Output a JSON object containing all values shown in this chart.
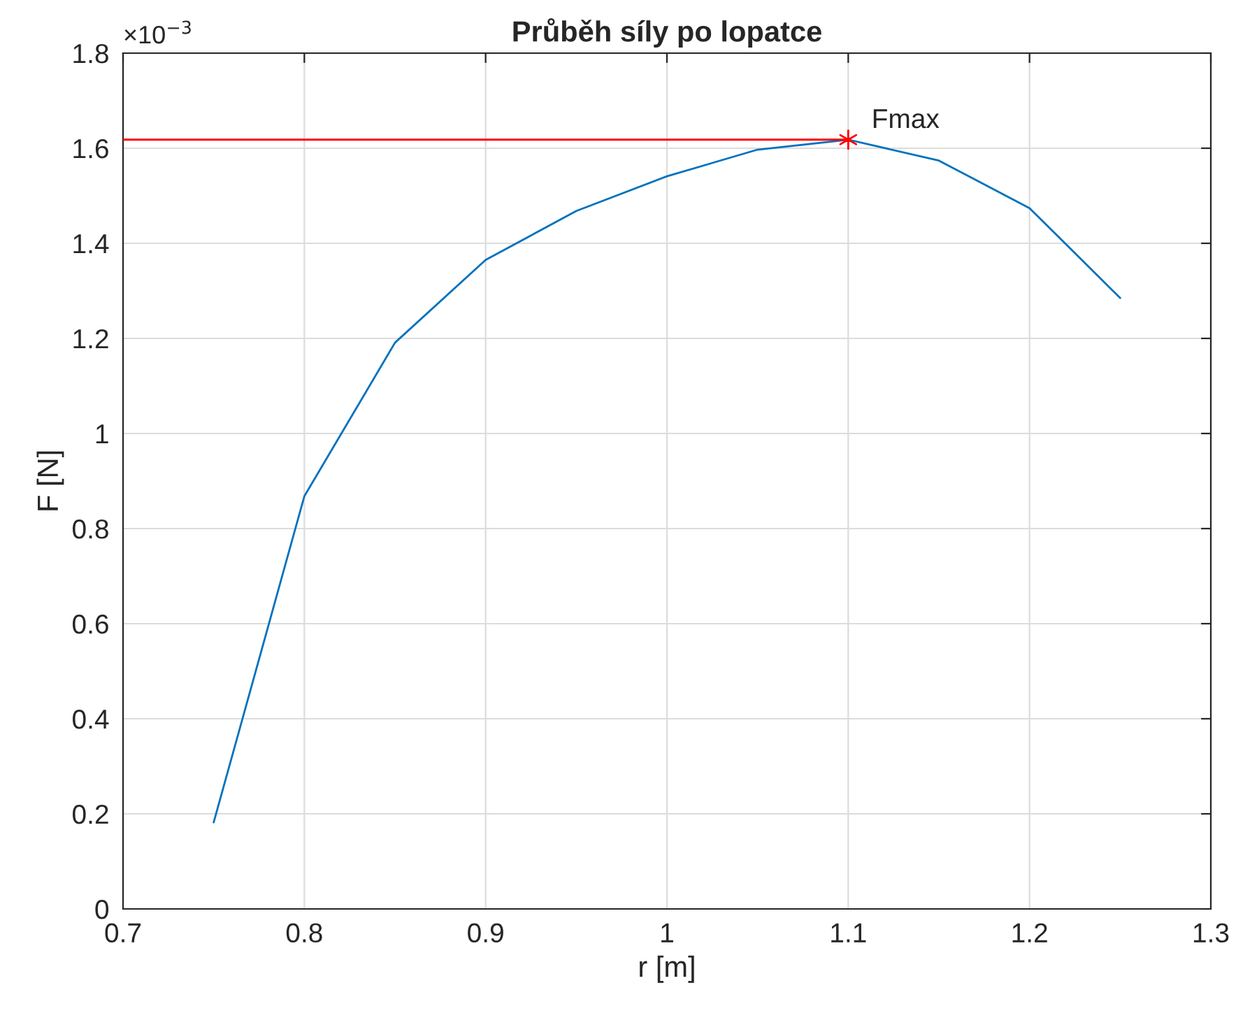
{
  "chart_data": {
    "type": "line",
    "title": "Průběh síly po lopatce",
    "xlabel": "r [m]",
    "ylabel": "F [N]",
    "x": [
      0.75,
      0.8,
      0.85,
      0.9,
      0.95,
      1.0,
      1.05,
      1.1,
      1.15,
      1.2,
      1.25
    ],
    "series": [
      {
        "color": "#0072bd",
        "values": [
          0.182,
          0.868,
          1.191,
          1.365,
          1.468,
          1.541,
          1.597,
          1.618,
          1.574,
          1.474,
          1.285
        ]
      },
      {
        "type": "scatter",
        "color": "#ff0000",
        "marker": "cross",
        "x": [
          1.1
        ],
        "values": [
          1.618
        ]
      }
    ],
    "annotations": [
      {
        "text": "Fmax",
        "x": 1.1,
        "y": 1.618
      },
      "×10$^{−3}$"
    ],
    "xlim": [
      0.7,
      1.3
    ],
    "xticks": [
      0.7,
      0.8,
      0.9,
      1,
      1.1,
      1.2,
      1.3
    ],
    "ylim": [
      0,
      1.8
    ],
    "yticks": [
      0,
      0.2,
      0.4,
      0.6,
      0.8,
      1,
      1.2,
      1.4,
      1.6,
      1.8
    ],
    "ref_lines": [
      {
        "axis": "y",
        "value": 1.618,
        "color": "#ff0000"
      }
    ],
    "grid": true,
    "legend": false
  }
}
